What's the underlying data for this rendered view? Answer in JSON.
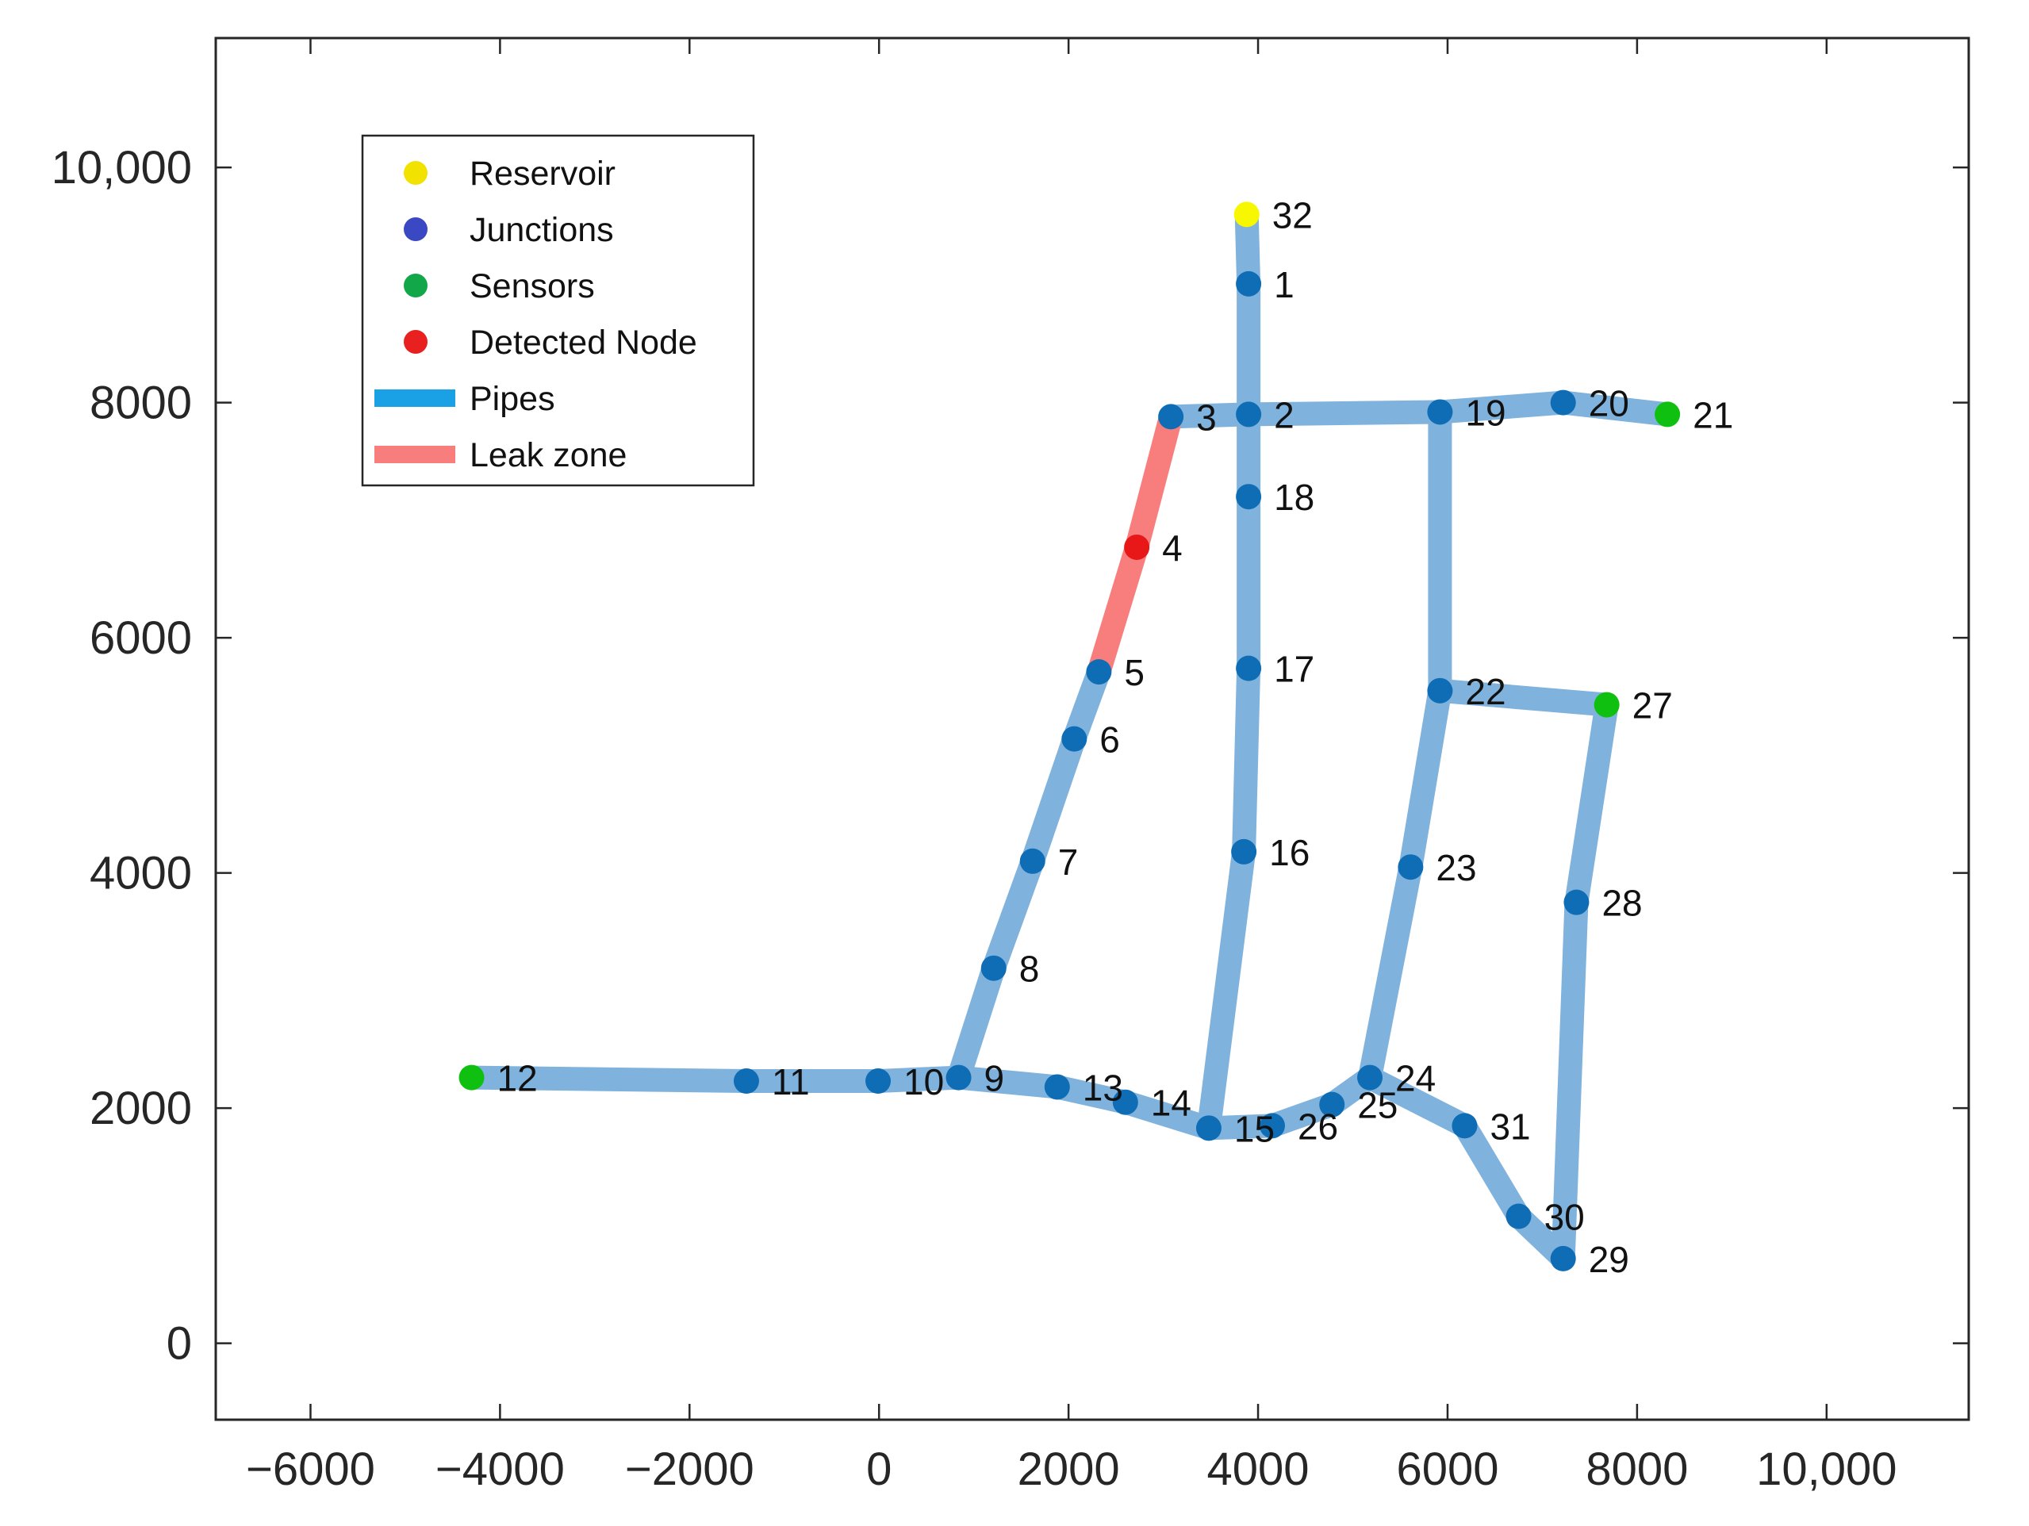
{
  "chart_data": {
    "type": "network",
    "xlim": [
      -7000,
      11500
    ],
    "ylim": [
      -650,
      11100
    ],
    "x_ticks": [
      -6000,
      -4000,
      -2000,
      0,
      2000,
      4000,
      6000,
      8000,
      10000
    ],
    "x_tick_labels": [
      "−6000",
      "−4000",
      "−2000",
      "0",
      "2000",
      "4000",
      "6000",
      "8000",
      "10,000"
    ],
    "y_ticks": [
      0,
      2000,
      4000,
      6000,
      8000,
      10000
    ],
    "y_tick_labels": [
      "0",
      "2000",
      "4000",
      "6000",
      "8000",
      "10,000"
    ],
    "colors": {
      "pipe": "#7fb2dc",
      "leak": "#f87e7e",
      "junction": "#0f6db5",
      "sensor": "#10c010",
      "reservoir": "#f7f700",
      "detected": "#e81818",
      "legend_junction": "#3a48c4",
      "legend_sensor": "#12a84a",
      "legend_reservoir": "#f2e200",
      "legend_detected": "#e82020",
      "legend_pipe": "#1aa0e4",
      "legend_leak": "#f87e7e"
    },
    "legend": [
      {
        "label": "Reservoir",
        "kind": "marker",
        "color_key": "legend_reservoir"
      },
      {
        "label": "Junctions",
        "kind": "marker",
        "color_key": "legend_junction"
      },
      {
        "label": "Sensors",
        "kind": "marker",
        "color_key": "legend_sensor"
      },
      {
        "label": "Detected Node",
        "kind": "marker",
        "color_key": "legend_detected"
      },
      {
        "label": "Pipes",
        "kind": "line",
        "color_key": "legend_pipe"
      },
      {
        "label": "Leak zone",
        "kind": "line",
        "color_key": "legend_leak"
      }
    ],
    "legend_position": "top-left",
    "nodes": [
      {
        "id": "1",
        "x": 3900,
        "y": 9010,
        "type": "junction"
      },
      {
        "id": "2",
        "x": 3900,
        "y": 7900,
        "type": "junction"
      },
      {
        "id": "3",
        "x": 3080,
        "y": 7880,
        "type": "junction"
      },
      {
        "id": "4",
        "x": 2720,
        "y": 6770,
        "type": "detected"
      },
      {
        "id": "5",
        "x": 2320,
        "y": 5710,
        "type": "junction"
      },
      {
        "id": "6",
        "x": 2060,
        "y": 5140,
        "type": "junction"
      },
      {
        "id": "7",
        "x": 1620,
        "y": 4100,
        "type": "junction"
      },
      {
        "id": "8",
        "x": 1210,
        "y": 3190,
        "type": "junction"
      },
      {
        "id": "9",
        "x": 840,
        "y": 2260,
        "type": "junction"
      },
      {
        "id": "10",
        "x": -10,
        "y": 2230,
        "type": "junction"
      },
      {
        "id": "11",
        "x": -1400,
        "y": 2230,
        "type": "junction"
      },
      {
        "id": "12",
        "x": -4300,
        "y": 2260,
        "type": "sensor"
      },
      {
        "id": "13",
        "x": 1880,
        "y": 2180,
        "type": "junction"
      },
      {
        "id": "14",
        "x": 2600,
        "y": 2050,
        "type": "junction"
      },
      {
        "id": "15",
        "x": 3480,
        "y": 1830,
        "type": "junction"
      },
      {
        "id": "16",
        "x": 3850,
        "y": 4180,
        "type": "junction"
      },
      {
        "id": "17",
        "x": 3900,
        "y": 5740,
        "type": "junction"
      },
      {
        "id": "18",
        "x": 3900,
        "y": 7200,
        "type": "junction"
      },
      {
        "id": "19",
        "x": 5920,
        "y": 7920,
        "type": "junction"
      },
      {
        "id": "20",
        "x": 7220,
        "y": 8000,
        "type": "junction"
      },
      {
        "id": "21",
        "x": 8320,
        "y": 7900,
        "type": "sensor"
      },
      {
        "id": "22",
        "x": 5920,
        "y": 5550,
        "type": "junction"
      },
      {
        "id": "23",
        "x": 5610,
        "y": 4050,
        "type": "junction"
      },
      {
        "id": "24",
        "x": 5180,
        "y": 2260,
        "type": "junction"
      },
      {
        "id": "25",
        "x": 4780,
        "y": 2030,
        "type": "junction"
      },
      {
        "id": "26",
        "x": 4150,
        "y": 1850,
        "type": "junction"
      },
      {
        "id": "27",
        "x": 7680,
        "y": 5430,
        "type": "sensor"
      },
      {
        "id": "28",
        "x": 7360,
        "y": 3750,
        "type": "junction"
      },
      {
        "id": "29",
        "x": 7220,
        "y": 720,
        "type": "junction"
      },
      {
        "id": "30",
        "x": 6750,
        "y": 1080,
        "type": "junction"
      },
      {
        "id": "31",
        "x": 6180,
        "y": 1850,
        "type": "junction"
      },
      {
        "id": "32",
        "x": 3880,
        "y": 9600,
        "type": "reservoir"
      }
    ],
    "pipes": [
      [
        "32",
        "1"
      ],
      [
        "1",
        "2"
      ],
      [
        "2",
        "18"
      ],
      [
        "18",
        "17"
      ],
      [
        "17",
        "16"
      ],
      [
        "16",
        "15"
      ],
      [
        "2",
        "3"
      ],
      [
        "2",
        "19"
      ],
      [
        "19",
        "20"
      ],
      [
        "20",
        "21"
      ],
      [
        "19",
        "22"
      ],
      [
        "22",
        "27"
      ],
      [
        "27",
        "28"
      ],
      [
        "28",
        "29"
      ],
      [
        "29",
        "30"
      ],
      [
        "30",
        "31"
      ],
      [
        "31",
        "24"
      ],
      [
        "22",
        "23"
      ],
      [
        "23",
        "24"
      ],
      [
        "24",
        "25"
      ],
      [
        "25",
        "26"
      ],
      [
        "26",
        "15"
      ],
      [
        "15",
        "14"
      ],
      [
        "14",
        "13"
      ],
      [
        "13",
        "9"
      ],
      [
        "9",
        "10"
      ],
      [
        "10",
        "11"
      ],
      [
        "11",
        "12"
      ],
      [
        "9",
        "8"
      ],
      [
        "8",
        "7"
      ],
      [
        "7",
        "6"
      ],
      [
        "6",
        "5"
      ]
    ],
    "leak_pipes": [
      [
        "3",
        "4"
      ],
      [
        "4",
        "5"
      ]
    ]
  }
}
